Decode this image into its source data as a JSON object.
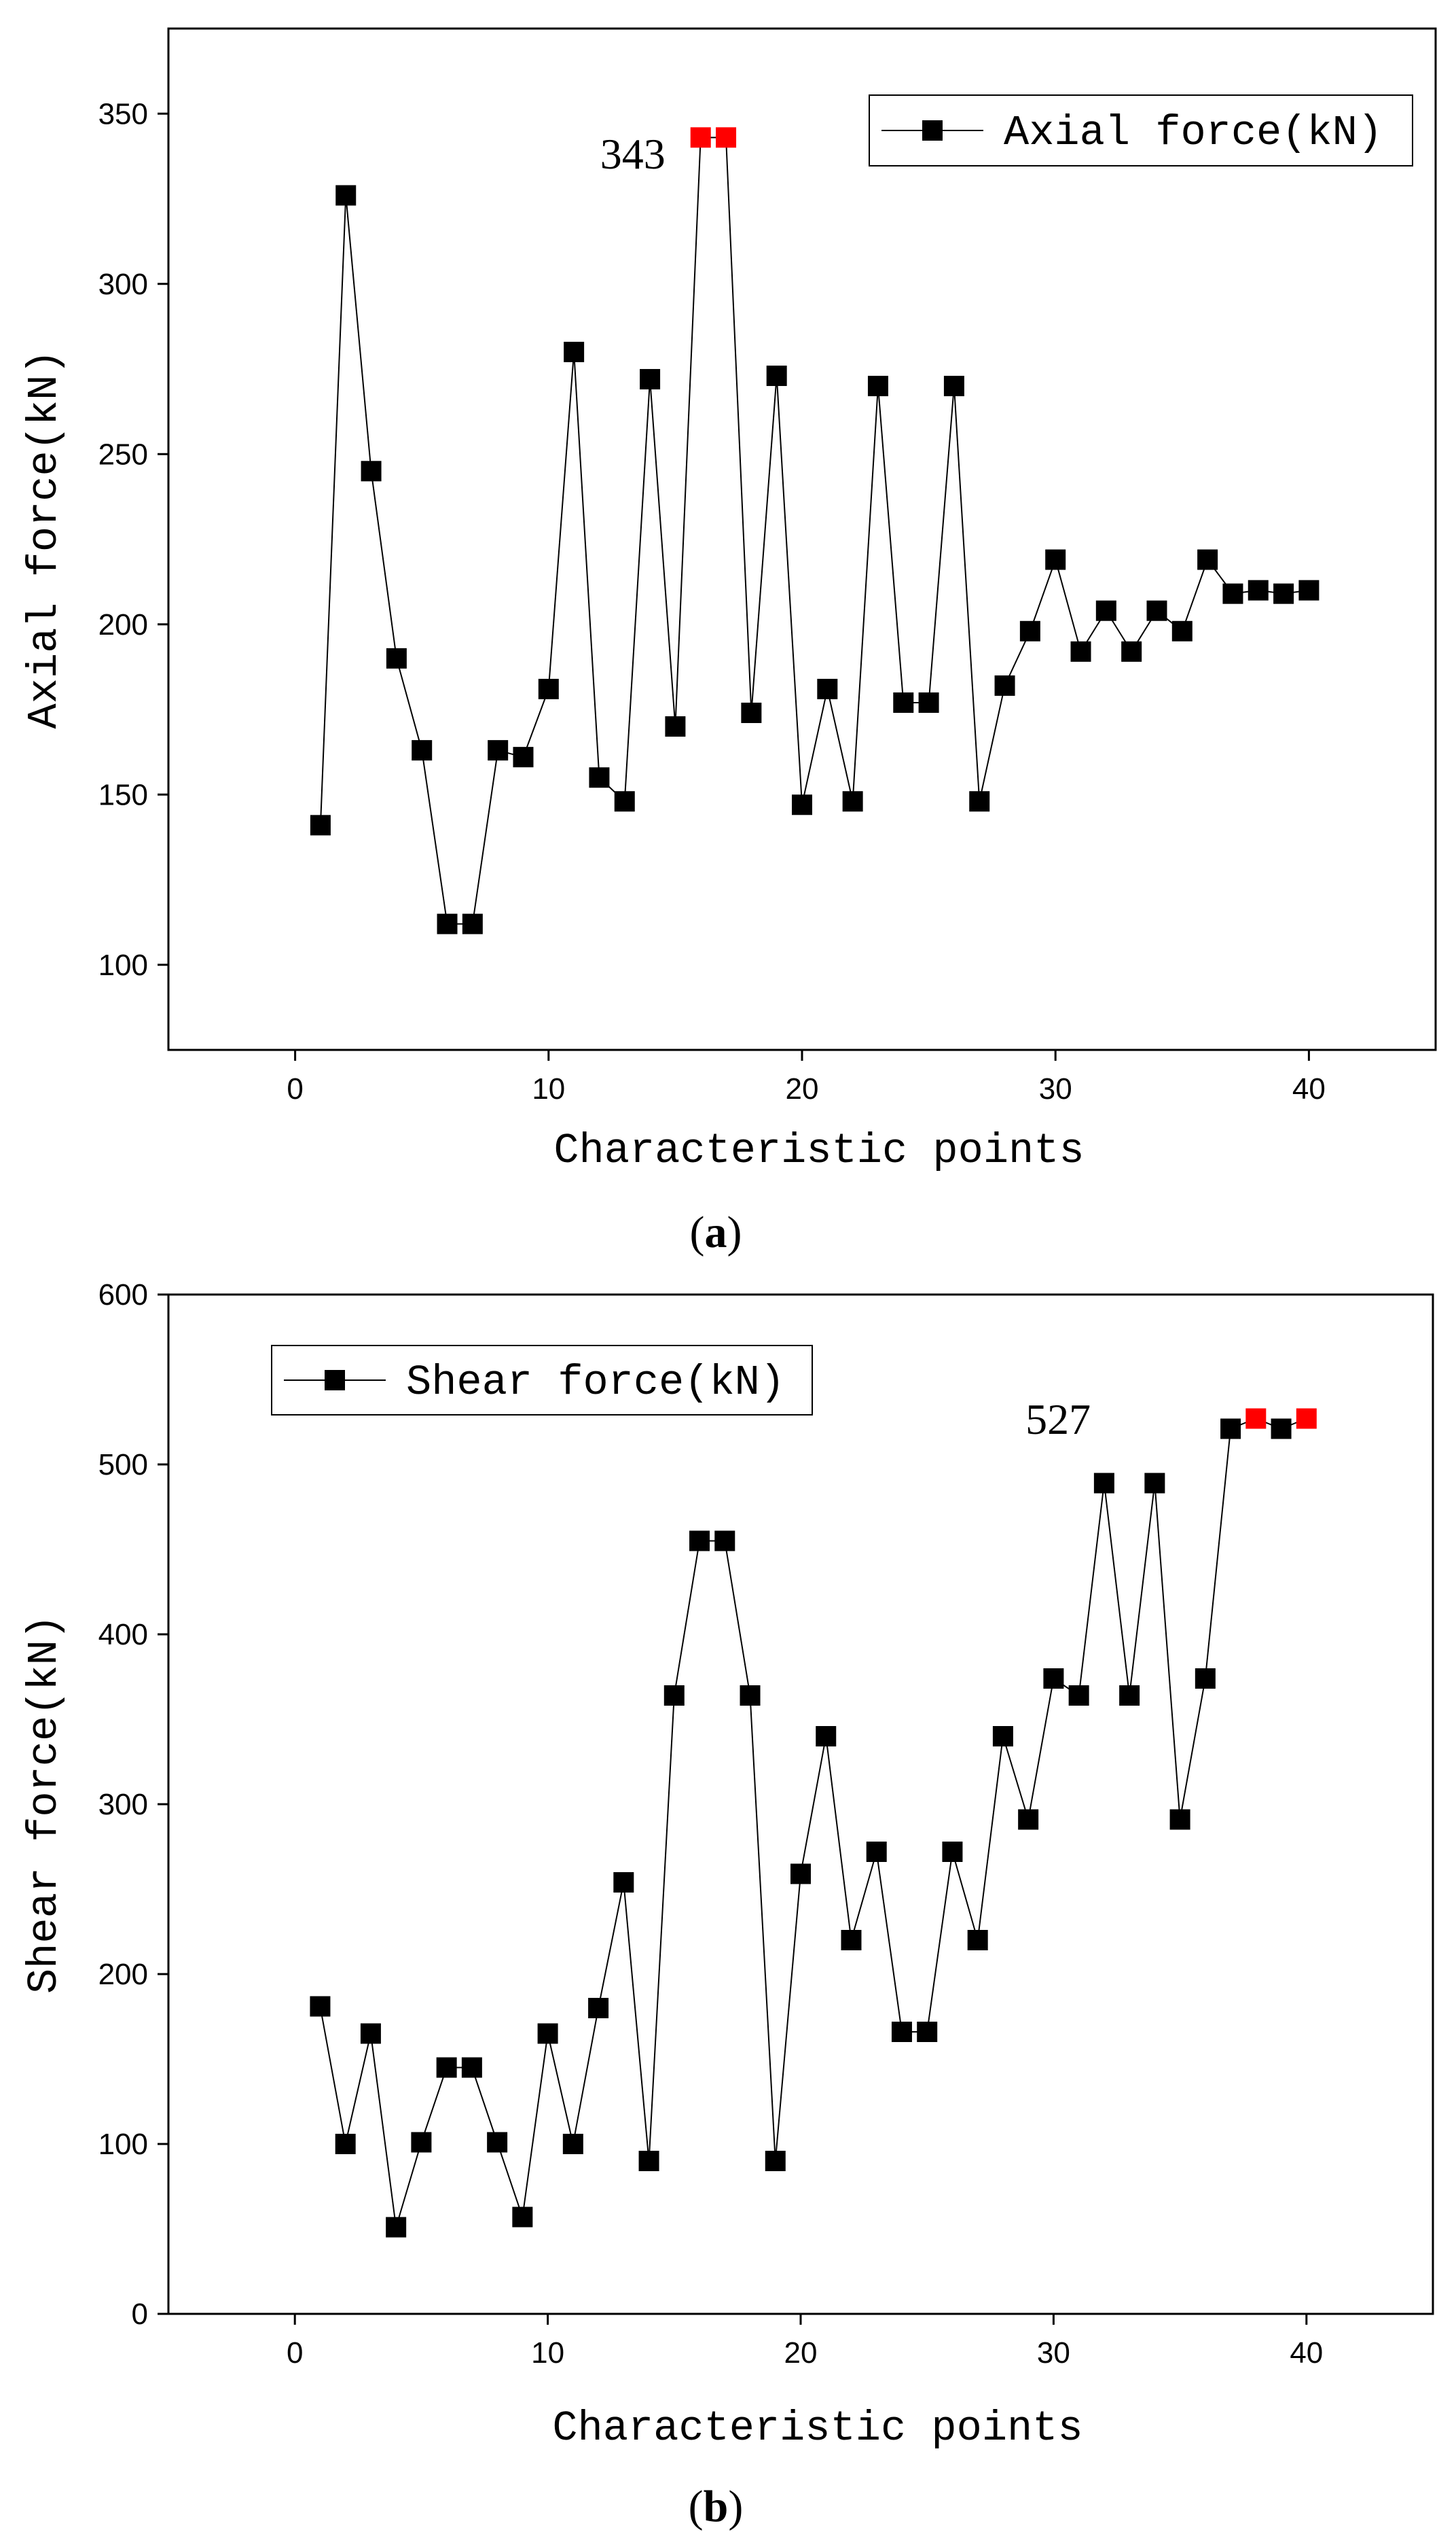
{
  "chart_data": [
    {
      "type": "line",
      "panel": "a",
      "ylabel": "Axial force(kN)",
      "xlabel": "Characteristic points",
      "xlim": [
        -5,
        45
      ],
      "ylim": [
        75,
        375
      ],
      "xticks": [
        0,
        10,
        20,
        30,
        40
      ],
      "yticks": [
        100,
        150,
        200,
        250,
        300,
        350
      ],
      "legend": {
        "label": "Axial force(kN)",
        "placement": "top-right"
      },
      "annotation": {
        "text": "343",
        "anchor_x": 16
      },
      "series": [
        {
          "name": "Axial force(kN)",
          "x": [
            1,
            2,
            3,
            4,
            5,
            6,
            7,
            8,
            9,
            10,
            11,
            12,
            13,
            14,
            15,
            16,
            17,
            18,
            19,
            20,
            21,
            22,
            23,
            24,
            25,
            26,
            27,
            28,
            29,
            30,
            31,
            32,
            33,
            34,
            35,
            36,
            37,
            38,
            39,
            40
          ],
          "values": [
            141,
            326,
            245,
            190,
            163,
            112,
            112,
            163,
            161,
            181,
            280,
            155,
            148,
            272,
            170,
            343,
            343,
            174,
            273,
            147,
            181,
            148,
            270,
            177,
            177,
            270,
            148,
            182,
            198,
            219,
            192,
            204,
            192,
            204,
            198,
            219,
            209,
            210,
            209,
            210
          ],
          "highlight_x": [
            16,
            17
          ],
          "color": "#000000",
          "highlight_color": "#ff0000"
        }
      ]
    },
    {
      "type": "line",
      "panel": "b",
      "ylabel": "Shear force(kN)",
      "xlabel": "Characteristic points",
      "xlim": [
        -5,
        45
      ],
      "ylim": [
        0,
        600
      ],
      "xticks": [
        0,
        10,
        20,
        30,
        40
      ],
      "yticks": [
        0,
        100,
        200,
        300,
        400,
        500,
        600
      ],
      "legend": {
        "label": "Shear force(kN)",
        "placement": "top-left"
      },
      "annotation": {
        "text": "527",
        "anchor_x": 33
      },
      "series": [
        {
          "name": "Shear force(kN)",
          "x": [
            1,
            2,
            3,
            4,
            5,
            6,
            7,
            8,
            9,
            10,
            11,
            12,
            13,
            14,
            15,
            16,
            17,
            18,
            19,
            20,
            21,
            22,
            23,
            24,
            25,
            26,
            27,
            28,
            29,
            30,
            31,
            32,
            33,
            34,
            35,
            36,
            37,
            38,
            39,
            40
          ],
          "values": [
            181,
            100,
            165,
            51,
            101,
            145,
            145,
            101,
            57,
            165,
            100,
            180,
            254,
            90,
            364,
            455,
            455,
            364,
            90,
            259,
            340,
            220,
            272,
            166,
            166,
            272,
            220,
            340,
            291,
            374,
            364,
            489,
            364,
            489,
            291,
            374,
            521,
            527,
            521,
            527
          ],
          "highlight_x": [
            38,
            40
          ],
          "color": "#000000",
          "highlight_color": "#ff0000"
        }
      ]
    }
  ],
  "panel_labels": [
    "(a)",
    "(b)"
  ]
}
